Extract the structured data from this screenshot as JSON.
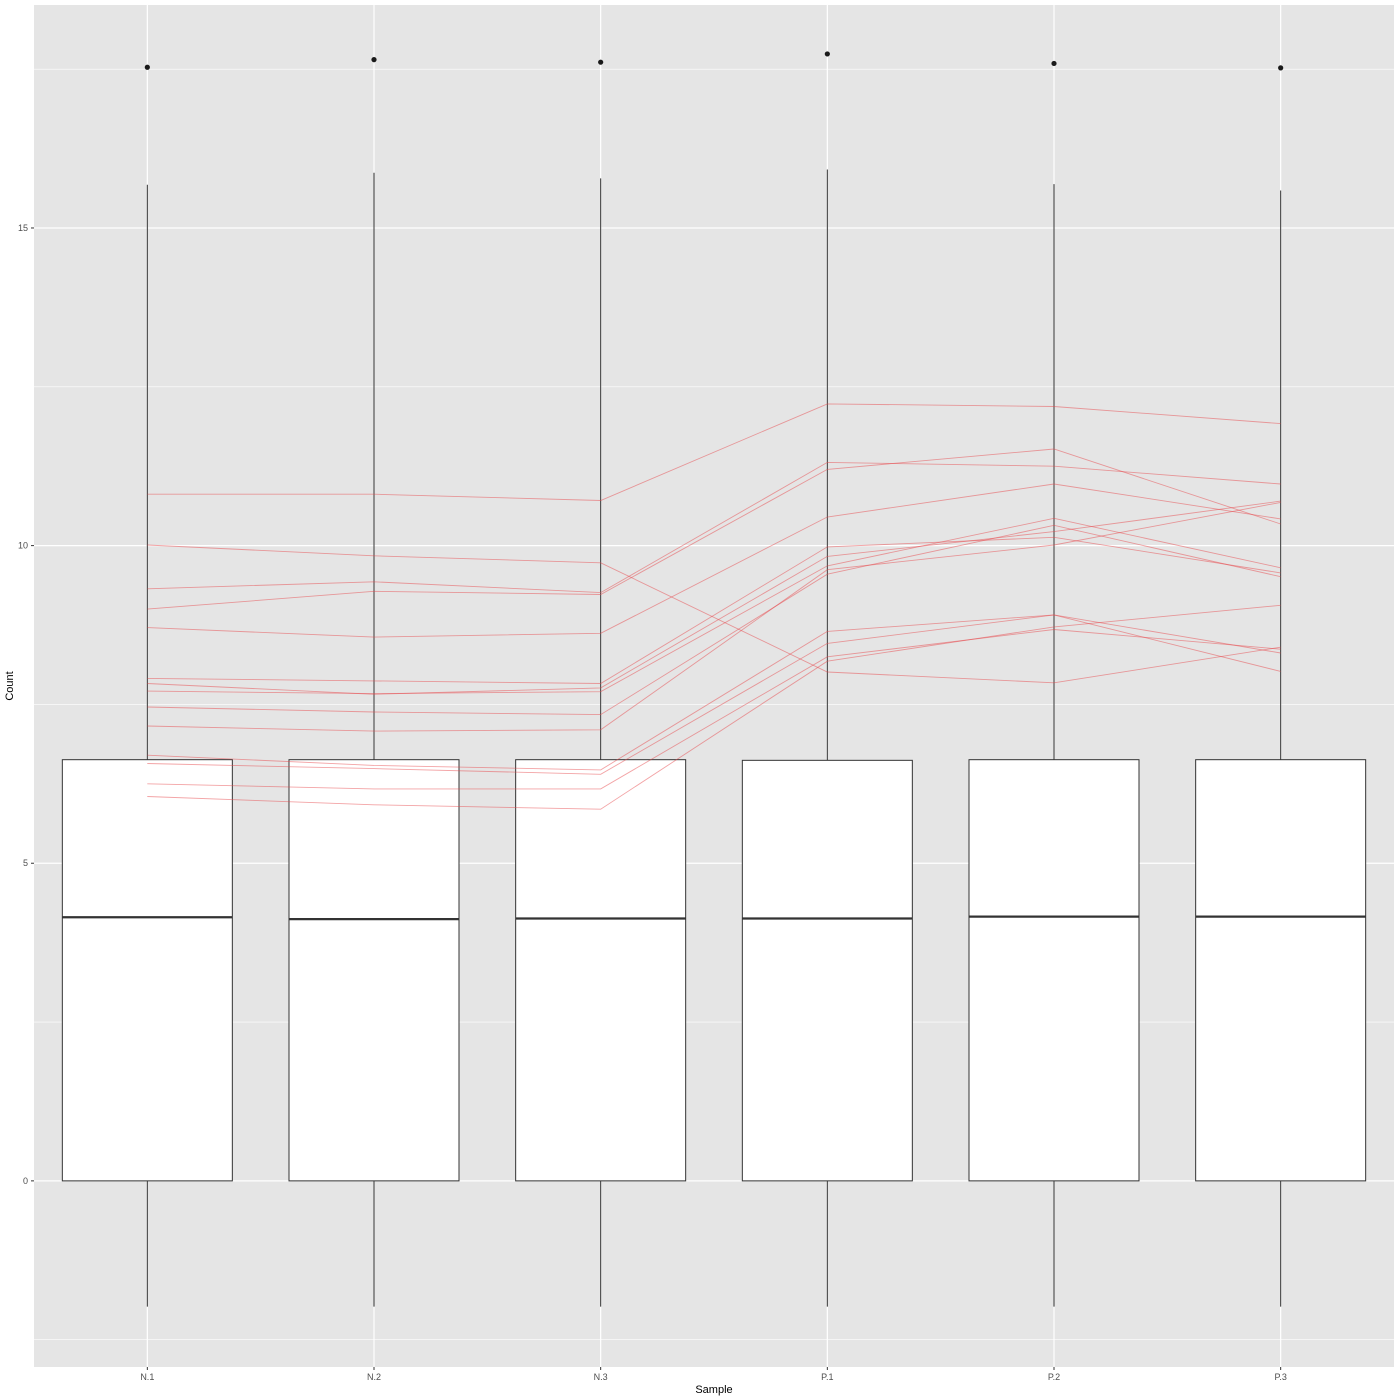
{
  "chart_data": {
    "type": "boxplot",
    "xlabel": "Sample",
    "ylabel": "Count",
    "categories": [
      "N.1",
      "N.2",
      "N.3",
      "P.1",
      "P.2",
      "P.3"
    ],
    "y_ticks": [
      0,
      5,
      10,
      15
    ],
    "ylim": [
      -2.93,
      18.51
    ],
    "grid": true,
    "panel_background": "#e5e5e5",
    "grid_color": "#ffffff",
    "box_fill": "#ffffff",
    "box_stroke": "#333333",
    "line_color": "#e8474b",
    "boxes": [
      {
        "category": "N.1",
        "whisker_low": -1.98,
        "q1": 0.0,
        "median": 4.15,
        "q3": 6.63,
        "whisker_high": 15.68,
        "outliers": [
          17.53
        ]
      },
      {
        "category": "N.2",
        "whisker_low": -1.98,
        "q1": 0.0,
        "median": 4.12,
        "q3": 6.63,
        "whisker_high": 15.87,
        "outliers": [
          17.65
        ]
      },
      {
        "category": "N.3",
        "whisker_low": -1.98,
        "q1": 0.0,
        "median": 4.13,
        "q3": 6.63,
        "whisker_high": 15.78,
        "outliers": [
          17.61
        ]
      },
      {
        "category": "P.1",
        "whisker_low": -1.98,
        "q1": 0.0,
        "median": 4.13,
        "q3": 6.62,
        "whisker_high": 15.92,
        "outliers": [
          17.74
        ]
      },
      {
        "category": "P.2",
        "whisker_low": -1.98,
        "q1": 0.0,
        "median": 4.16,
        "q3": 6.63,
        "whisker_high": 15.69,
        "outliers": [
          17.59
        ]
      },
      {
        "category": "P.3",
        "whisker_low": -1.98,
        "q1": 0.0,
        "median": 4.16,
        "q3": 6.63,
        "whisker_high": 15.59,
        "outliers": [
          17.52
        ]
      }
    ],
    "gene_lines": [
      [
        10.81,
        10.81,
        10.71,
        12.23,
        12.19,
        11.92
      ],
      [
        10.01,
        9.84,
        9.73,
        8.01,
        7.84,
        8.4
      ],
      [
        9.32,
        9.43,
        9.26,
        11.31,
        11.25,
        10.97
      ],
      [
        9.0,
        9.28,
        9.23,
        11.2,
        11.52,
        10.34
      ],
      [
        8.71,
        8.56,
        8.62,
        10.45,
        10.97,
        10.42
      ],
      [
        7.91,
        7.87,
        7.83,
        9.98,
        10.13,
        9.57
      ],
      [
        7.83,
        7.66,
        7.76,
        9.83,
        10.22,
        10.7
      ],
      [
        7.71,
        7.67,
        7.7,
        9.68,
        10.43,
        9.65
      ],
      [
        7.46,
        7.38,
        7.34,
        9.55,
        10.32,
        9.51
      ],
      [
        7.16,
        7.08,
        7.1,
        9.62,
        10.01,
        10.68
      ],
      [
        6.7,
        6.54,
        6.47,
        8.65,
        8.91,
        8.31
      ],
      [
        6.57,
        6.49,
        6.4,
        8.46,
        8.91,
        8.02
      ],
      [
        6.25,
        6.17,
        6.17,
        8.25,
        8.68,
        8.37
      ],
      [
        6.05,
        5.92,
        5.85,
        8.18,
        8.72,
        9.06
      ]
    ]
  }
}
